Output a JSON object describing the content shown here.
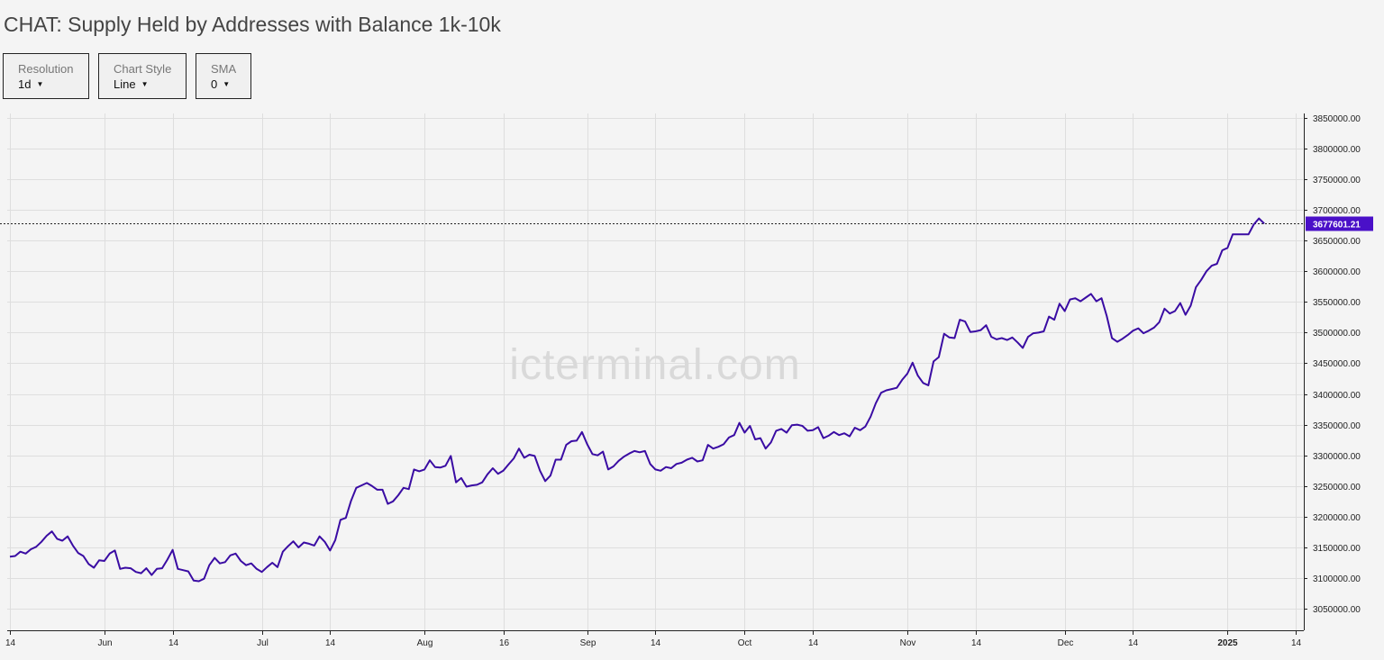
{
  "page": {
    "title": "CHAT: Supply Held by Addresses with Balance 1k-10k",
    "watermark": "icterminal.com"
  },
  "controls": [
    {
      "id": "resolution",
      "label": "Resolution",
      "value": "1d"
    },
    {
      "id": "chart_style",
      "label": "Chart Style",
      "value": "Line"
    },
    {
      "id": "sma",
      "label": "SMA",
      "value": "0"
    }
  ],
  "colors": {
    "line": "#3a0ca3",
    "price_label_bg": "#4a10c8",
    "price_label_text": "#ffffff",
    "grid": "#dedede",
    "axis": "#222222",
    "watermark": "#d9d9d9"
  },
  "chart_data": {
    "type": "line",
    "title": "CHAT: Supply Held by Addresses with Balance 1k-10k",
    "ylim": [
      3015000,
      3857000
    ],
    "xlim": [
      "2024-05-14",
      "2025-01-14"
    ],
    "grid": true,
    "y_ticks": [
      3050000,
      3100000,
      3150000,
      3200000,
      3250000,
      3300000,
      3350000,
      3400000,
      3450000,
      3500000,
      3550000,
      3600000,
      3650000,
      3700000,
      3750000,
      3800000,
      3850000
    ],
    "y_tick_labels": [
      "3050000.00",
      "3100000.00",
      "3150000.00",
      "3200000.00",
      "3250000.00",
      "3300000.00",
      "3350000.00",
      "3400000.00",
      "3450000.00",
      "3500000.00",
      "3550000.00",
      "3600000.00",
      "3650000.00",
      "3700000.00",
      "3750000.00",
      "3800000.00",
      "3850000.00"
    ],
    "x_ticks": [
      {
        "date": "2024-05-14",
        "label": "14"
      },
      {
        "date": "2024-06-01",
        "label": "Jun"
      },
      {
        "date": "2024-06-14",
        "label": "14"
      },
      {
        "date": "2024-07-01",
        "label": "Jul"
      },
      {
        "date": "2024-07-14",
        "label": "14"
      },
      {
        "date": "2024-08-01",
        "label": "Aug"
      },
      {
        "date": "2024-08-16",
        "label": "16"
      },
      {
        "date": "2024-09-01",
        "label": "Sep"
      },
      {
        "date": "2024-09-14",
        "label": "14"
      },
      {
        "date": "2024-10-01",
        "label": "Oct"
      },
      {
        "date": "2024-10-14",
        "label": "14"
      },
      {
        "date": "2024-11-01",
        "label": "Nov"
      },
      {
        "date": "2024-11-14",
        "label": "14"
      },
      {
        "date": "2024-12-01",
        "label": "Dec"
      },
      {
        "date": "2024-12-14",
        "label": "14"
      },
      {
        "date": "2025-01-01",
        "label": "2025",
        "bold": true
      },
      {
        "date": "2025-01-14",
        "label": "14"
      }
    ],
    "last_value": 3677601.21,
    "last_value_label": "3677601.21",
    "series": [
      {
        "points": [
          [
            "2024-05-14",
            3135000
          ],
          [
            "2024-05-15",
            3136000
          ],
          [
            "2024-05-16",
            3143000
          ],
          [
            "2024-05-17",
            3140000
          ],
          [
            "2024-05-18",
            3147000
          ],
          [
            "2024-05-19",
            3151000
          ],
          [
            "2024-05-20",
            3159000
          ],
          [
            "2024-05-21",
            3169000
          ],
          [
            "2024-05-22",
            3176000
          ],
          [
            "2024-05-23",
            3164000
          ],
          [
            "2024-05-24",
            3161000
          ],
          [
            "2024-05-25",
            3168000
          ],
          [
            "2024-05-26",
            3153000
          ],
          [
            "2024-05-27",
            3141000
          ],
          [
            "2024-05-28",
            3136000
          ],
          [
            "2024-05-29",
            3123000
          ],
          [
            "2024-05-30",
            3117000
          ],
          [
            "2024-05-31",
            3129000
          ],
          [
            "2024-06-01",
            3128000
          ],
          [
            "2024-06-02",
            3140000
          ],
          [
            "2024-06-03",
            3145000
          ],
          [
            "2024-06-04",
            3115000
          ],
          [
            "2024-06-05",
            3117000
          ],
          [
            "2024-06-06",
            3116000
          ],
          [
            "2024-06-07",
            3110000
          ],
          [
            "2024-06-08",
            3108000
          ],
          [
            "2024-06-09",
            3116000
          ],
          [
            "2024-06-10",
            3105000
          ],
          [
            "2024-06-11",
            3115000
          ],
          [
            "2024-06-12",
            3116000
          ],
          [
            "2024-06-13",
            3130000
          ],
          [
            "2024-06-14",
            3146000
          ],
          [
            "2024-06-15",
            3115000
          ],
          [
            "2024-06-16",
            3113000
          ],
          [
            "2024-06-17",
            3111000
          ],
          [
            "2024-06-18",
            3096000
          ],
          [
            "2024-06-19",
            3095000
          ],
          [
            "2024-06-20",
            3099000
          ],
          [
            "2024-06-21",
            3121000
          ],
          [
            "2024-06-22",
            3133000
          ],
          [
            "2024-06-23",
            3124000
          ],
          [
            "2024-06-24",
            3126000
          ],
          [
            "2024-06-25",
            3137000
          ],
          [
            "2024-06-26",
            3140000
          ],
          [
            "2024-06-27",
            3128000
          ],
          [
            "2024-06-28",
            3121000
          ],
          [
            "2024-06-29",
            3124000
          ],
          [
            "2024-06-30",
            3115000
          ],
          [
            "2024-07-01",
            3110000
          ],
          [
            "2024-07-02",
            3118000
          ],
          [
            "2024-07-03",
            3125000
          ],
          [
            "2024-07-04",
            3118000
          ],
          [
            "2024-07-05",
            3143000
          ],
          [
            "2024-07-06",
            3152000
          ],
          [
            "2024-07-07",
            3160000
          ],
          [
            "2024-07-08",
            3150000
          ],
          [
            "2024-07-09",
            3158000
          ],
          [
            "2024-07-10",
            3156000
          ],
          [
            "2024-07-11",
            3153000
          ],
          [
            "2024-07-12",
            3168000
          ],
          [
            "2024-07-13",
            3159000
          ],
          [
            "2024-07-14",
            3145000
          ],
          [
            "2024-07-15",
            3162000
          ],
          [
            "2024-07-16",
            3195000
          ],
          [
            "2024-07-17",
            3198000
          ],
          [
            "2024-07-18",
            3226000
          ],
          [
            "2024-07-19",
            3247000
          ],
          [
            "2024-07-20",
            3251000
          ],
          [
            "2024-07-21",
            3255000
          ],
          [
            "2024-07-22",
            3250000
          ],
          [
            "2024-07-23",
            3244000
          ],
          [
            "2024-07-24",
            3244000
          ],
          [
            "2024-07-25",
            3221000
          ],
          [
            "2024-07-26",
            3225000
          ],
          [
            "2024-07-27",
            3235000
          ],
          [
            "2024-07-28",
            3247000
          ],
          [
            "2024-07-29",
            3245000
          ],
          [
            "2024-07-30",
            3277000
          ],
          [
            "2024-07-31",
            3274000
          ],
          [
            "2024-08-01",
            3277000
          ],
          [
            "2024-08-02",
            3292000
          ],
          [
            "2024-08-03",
            3281000
          ],
          [
            "2024-08-04",
            3280000
          ],
          [
            "2024-08-05",
            3283000
          ],
          [
            "2024-08-06",
            3299000
          ],
          [
            "2024-08-07",
            3256000
          ],
          [
            "2024-08-08",
            3263000
          ],
          [
            "2024-08-09",
            3249000
          ],
          [
            "2024-08-10",
            3251000
          ],
          [
            "2024-08-11",
            3252000
          ],
          [
            "2024-08-12",
            3256000
          ],
          [
            "2024-08-13",
            3269000
          ],
          [
            "2024-08-14",
            3279000
          ],
          [
            "2024-08-15",
            3270000
          ],
          [
            "2024-08-16",
            3275000
          ],
          [
            "2024-08-17",
            3285000
          ],
          [
            "2024-08-18",
            3295000
          ],
          [
            "2024-08-19",
            3311000
          ],
          [
            "2024-08-20",
            3296000
          ],
          [
            "2024-08-21",
            3301000
          ],
          [
            "2024-08-22",
            3299000
          ],
          [
            "2024-08-23",
            3275000
          ],
          [
            "2024-08-24",
            3258000
          ],
          [
            "2024-08-25",
            3267000
          ],
          [
            "2024-08-26",
            3293000
          ],
          [
            "2024-08-27",
            3293000
          ],
          [
            "2024-08-28",
            3317000
          ],
          [
            "2024-08-29",
            3323000
          ],
          [
            "2024-08-30",
            3324000
          ],
          [
            "2024-08-31",
            3338000
          ],
          [
            "2024-09-01",
            3318000
          ],
          [
            "2024-09-02",
            3302000
          ],
          [
            "2024-09-03",
            3300000
          ],
          [
            "2024-09-04",
            3306000
          ],
          [
            "2024-09-05",
            3277000
          ],
          [
            "2024-09-06",
            3282000
          ],
          [
            "2024-09-07",
            3291000
          ],
          [
            "2024-09-08",
            3298000
          ],
          [
            "2024-09-09",
            3303000
          ],
          [
            "2024-09-10",
            3307000
          ],
          [
            "2024-09-11",
            3305000
          ],
          [
            "2024-09-12",
            3307000
          ],
          [
            "2024-09-13",
            3286000
          ],
          [
            "2024-09-14",
            3277000
          ],
          [
            "2024-09-15",
            3275000
          ],
          [
            "2024-09-16",
            3281000
          ],
          [
            "2024-09-17",
            3279000
          ],
          [
            "2024-09-18",
            3286000
          ],
          [
            "2024-09-19",
            3288000
          ],
          [
            "2024-09-20",
            3293000
          ],
          [
            "2024-09-21",
            3296000
          ],
          [
            "2024-09-22",
            3290000
          ],
          [
            "2024-09-23",
            3292000
          ],
          [
            "2024-09-24",
            3317000
          ],
          [
            "2024-09-25",
            3311000
          ],
          [
            "2024-09-26",
            3314000
          ],
          [
            "2024-09-27",
            3318000
          ],
          [
            "2024-09-28",
            3329000
          ],
          [
            "2024-09-29",
            3333000
          ],
          [
            "2024-09-30",
            3353000
          ],
          [
            "2024-10-01",
            3337000
          ],
          [
            "2024-10-02",
            3348000
          ],
          [
            "2024-10-03",
            3326000
          ],
          [
            "2024-10-04",
            3328000
          ],
          [
            "2024-10-05",
            3311000
          ],
          [
            "2024-10-06",
            3321000
          ],
          [
            "2024-10-07",
            3340000
          ],
          [
            "2024-10-08",
            3343000
          ],
          [
            "2024-10-09",
            3337000
          ],
          [
            "2024-10-10",
            3349000
          ],
          [
            "2024-10-11",
            3350000
          ],
          [
            "2024-10-12",
            3348000
          ],
          [
            "2024-10-13",
            3340000
          ],
          [
            "2024-10-14",
            3341000
          ],
          [
            "2024-10-15",
            3346000
          ],
          [
            "2024-10-16",
            3328000
          ],
          [
            "2024-10-17",
            3332000
          ],
          [
            "2024-10-18",
            3338000
          ],
          [
            "2024-10-19",
            3333000
          ],
          [
            "2024-10-20",
            3336000
          ],
          [
            "2024-10-21",
            3331000
          ],
          [
            "2024-10-22",
            3345000
          ],
          [
            "2024-10-23",
            3341000
          ],
          [
            "2024-10-24",
            3347000
          ],
          [
            "2024-10-25",
            3363000
          ],
          [
            "2024-10-26",
            3385000
          ],
          [
            "2024-10-27",
            3402000
          ],
          [
            "2024-10-28",
            3406000
          ],
          [
            "2024-10-29",
            3408000
          ],
          [
            "2024-10-30",
            3410000
          ],
          [
            "2024-10-31",
            3423000
          ],
          [
            "2024-11-01",
            3433000
          ],
          [
            "2024-11-02",
            3451000
          ],
          [
            "2024-11-03",
            3430000
          ],
          [
            "2024-11-04",
            3418000
          ],
          [
            "2024-11-05",
            3414000
          ],
          [
            "2024-11-06",
            3453000
          ],
          [
            "2024-11-07",
            3460000
          ],
          [
            "2024-11-08",
            3498000
          ],
          [
            "2024-11-09",
            3492000
          ],
          [
            "2024-11-10",
            3491000
          ],
          [
            "2024-11-11",
            3521000
          ],
          [
            "2024-11-12",
            3518000
          ],
          [
            "2024-11-13",
            3501000
          ],
          [
            "2024-11-14",
            3502000
          ],
          [
            "2024-11-15",
            3504000
          ],
          [
            "2024-11-16",
            3512000
          ],
          [
            "2024-11-17",
            3493000
          ],
          [
            "2024-11-18",
            3489000
          ],
          [
            "2024-11-19",
            3491000
          ],
          [
            "2024-11-20",
            3488000
          ],
          [
            "2024-11-21",
            3492000
          ],
          [
            "2024-11-22",
            3484000
          ],
          [
            "2024-11-23",
            3475000
          ],
          [
            "2024-11-24",
            3493000
          ],
          [
            "2024-11-25",
            3499000
          ],
          [
            "2024-11-26",
            3500000
          ],
          [
            "2024-11-27",
            3502000
          ],
          [
            "2024-11-28",
            3526000
          ],
          [
            "2024-11-29",
            3521000
          ],
          [
            "2024-11-30",
            3547000
          ],
          [
            "2024-12-01",
            3535000
          ],
          [
            "2024-12-02",
            3554000
          ],
          [
            "2024-12-03",
            3556000
          ],
          [
            "2024-12-04",
            3551000
          ],
          [
            "2024-12-05",
            3557000
          ],
          [
            "2024-12-06",
            3563000
          ],
          [
            "2024-12-07",
            3551000
          ],
          [
            "2024-12-08",
            3556000
          ],
          [
            "2024-12-09",
            3527000
          ],
          [
            "2024-12-10",
            3491000
          ],
          [
            "2024-12-11",
            3485000
          ],
          [
            "2024-12-12",
            3490000
          ],
          [
            "2024-12-13",
            3496000
          ],
          [
            "2024-12-14",
            3503000
          ],
          [
            "2024-12-15",
            3507000
          ],
          [
            "2024-12-16",
            3499000
          ],
          [
            "2024-12-17",
            3503000
          ],
          [
            "2024-12-18",
            3508000
          ],
          [
            "2024-12-19",
            3517000
          ],
          [
            "2024-12-20",
            3539000
          ],
          [
            "2024-12-21",
            3531000
          ],
          [
            "2024-12-22",
            3535000
          ],
          [
            "2024-12-23",
            3548000
          ],
          [
            "2024-12-24",
            3529000
          ],
          [
            "2024-12-25",
            3544000
          ],
          [
            "2024-12-26",
            3574000
          ],
          [
            "2024-12-27",
            3586000
          ],
          [
            "2024-12-28",
            3600000
          ],
          [
            "2024-12-29",
            3609000
          ],
          [
            "2024-12-30",
            3612000
          ],
          [
            "2024-12-31",
            3634000
          ],
          [
            "2025-01-01",
            3638000
          ],
          [
            "2025-01-02",
            3660000
          ],
          [
            "2025-01-03",
            3660000
          ],
          [
            "2025-01-04",
            3660000
          ],
          [
            "2025-01-05",
            3660000
          ],
          [
            "2025-01-06",
            3676000
          ],
          [
            "2025-01-07",
            3686000
          ],
          [
            "2025-01-08",
            3677601.21
          ]
        ]
      }
    ]
  }
}
